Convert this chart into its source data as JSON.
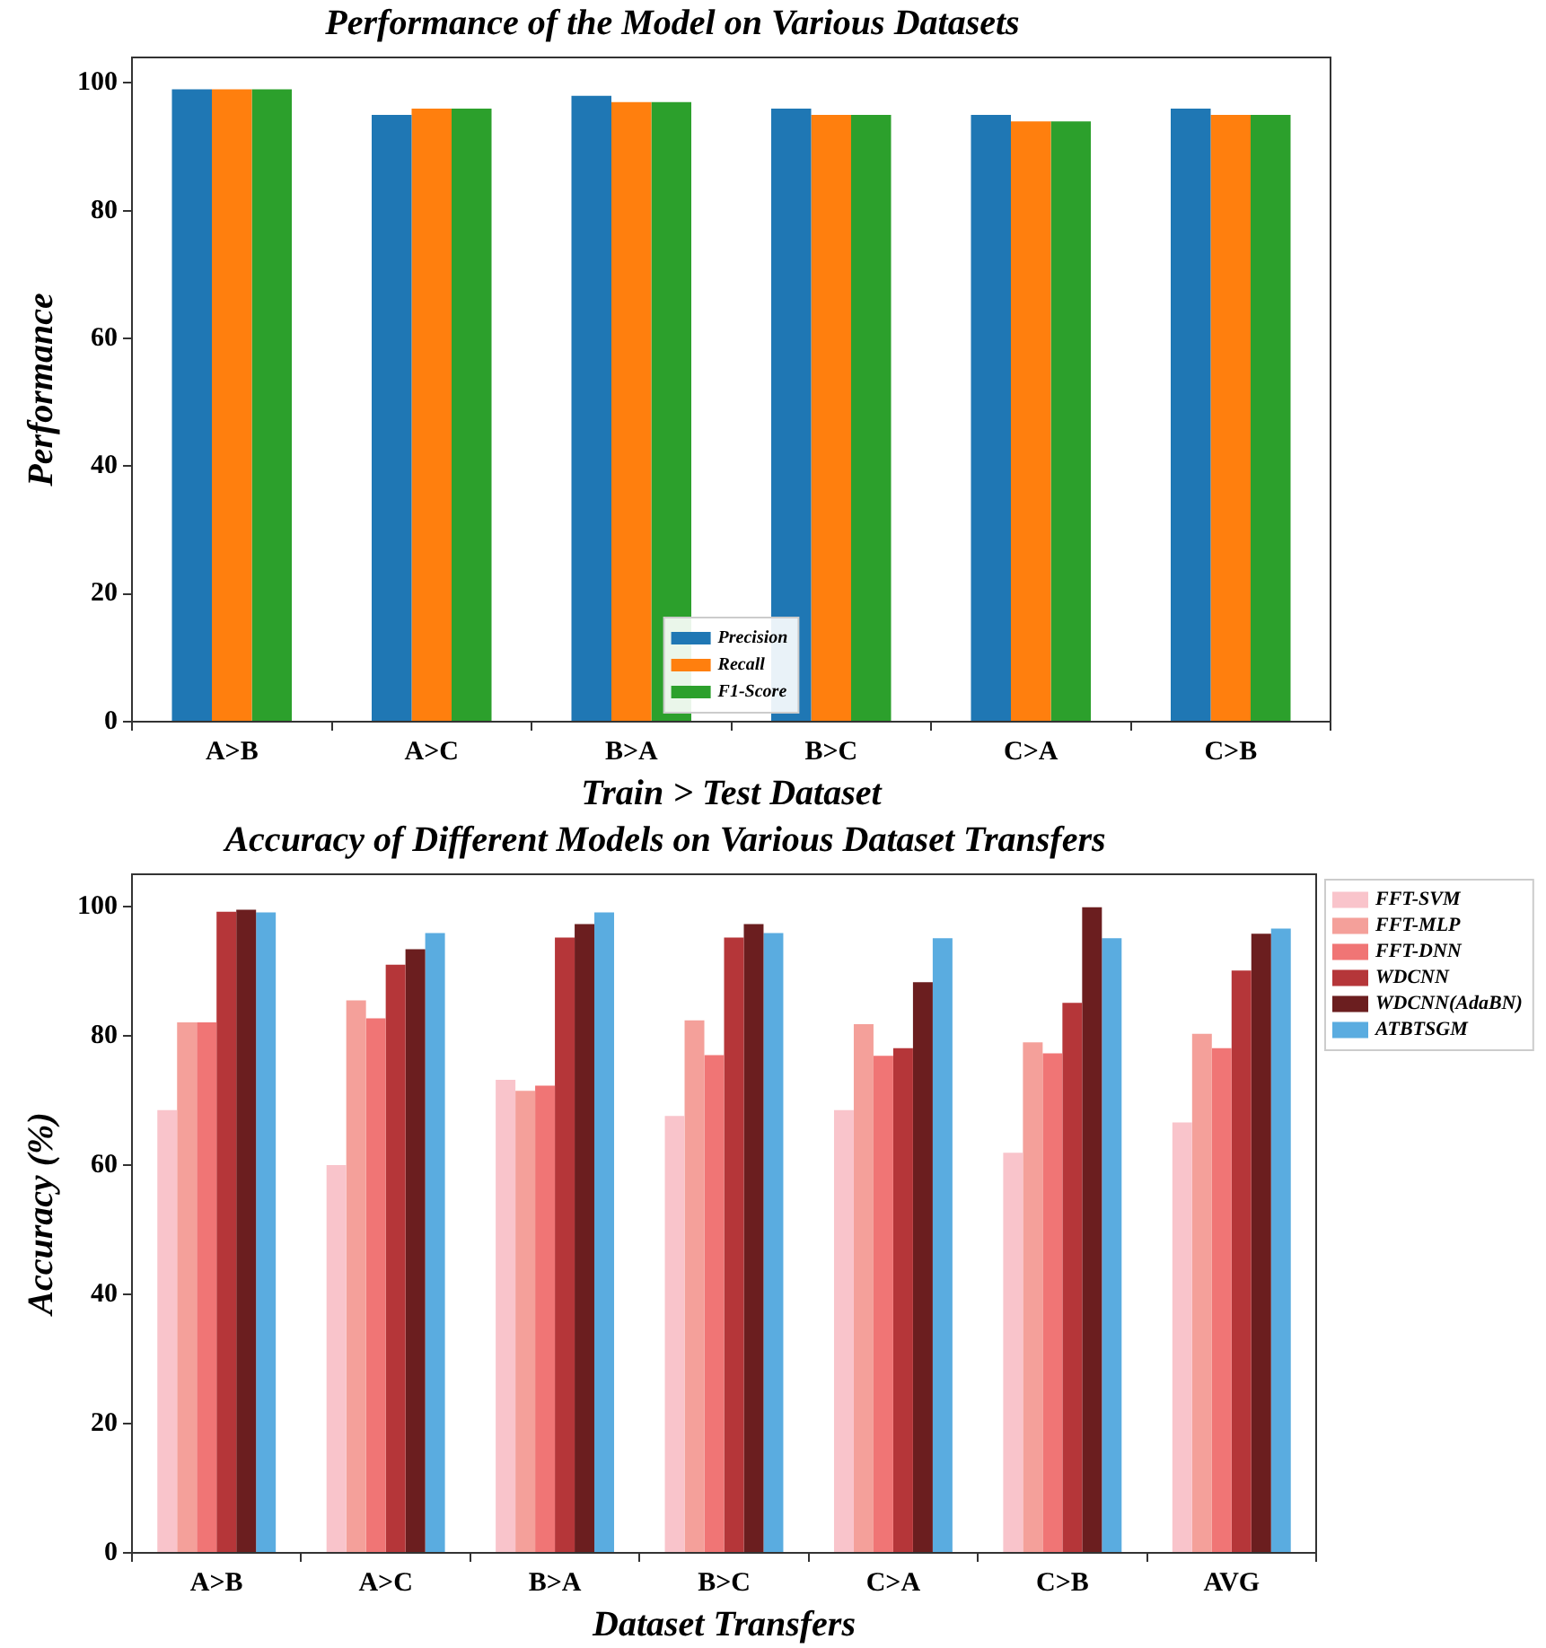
{
  "chart_data": [
    {
      "type": "bar",
      "title": "Performance of the Model on Various Datasets",
      "xlabel": "Train > Test Dataset",
      "ylabel": "Performance",
      "categories": [
        "A>B",
        "A>C",
        "B>A",
        "B>C",
        "C>A",
        "C>B"
      ],
      "series": [
        {
          "name": "Precision",
          "color": "#1f77b4",
          "values": [
            99,
            95,
            98,
            96,
            95,
            96
          ]
        },
        {
          "name": "Recall",
          "color": "#ff7f0e",
          "values": [
            99,
            96,
            97,
            95,
            94,
            95
          ]
        },
        {
          "name": "F1-Score",
          "color": "#2ca02c",
          "values": [
            99,
            96,
            97,
            95,
            94,
            95
          ]
        }
      ],
      "ylim": [
        0,
        104
      ],
      "yticks": [
        0,
        20,
        40,
        60,
        80,
        100
      ],
      "grid": false,
      "legend": "bottom"
    },
    {
      "type": "bar",
      "title": "Accuracy of Different Models on Various Dataset Transfers",
      "xlabel": "Dataset Transfers",
      "ylabel": "Accuracy (%)",
      "categories": [
        "A>B",
        "A>C",
        "B>A",
        "B>C",
        "C>A",
        "C>B",
        "AVG"
      ],
      "series": [
        {
          "name": "FFT-SVM",
          "color": "#f9c4cb",
          "values": [
            68.5,
            60.0,
            73.2,
            67.6,
            68.5,
            61.9,
            66.6
          ]
        },
        {
          "name": "FFT-MLP",
          "color": "#f4a09a",
          "values": [
            82.1,
            85.5,
            71.5,
            82.4,
            81.8,
            79.0,
            80.3
          ]
        },
        {
          "name": "FFT-DNN",
          "color": "#f07575",
          "values": [
            82.1,
            82.7,
            72.3,
            77.0,
            76.9,
            77.3,
            78.1
          ]
        },
        {
          "name": "WDCNN",
          "color": "#b53639",
          "values": [
            99.2,
            91.0,
            95.2,
            95.2,
            78.1,
            85.1,
            90.1
          ]
        },
        {
          "name": "WDCNN(AdaBN)",
          "color": "#6b1e1f",
          "values": [
            99.5,
            93.4,
            97.3,
            97.3,
            88.3,
            99.9,
            95.8
          ]
        },
        {
          "name": "ATBTSGM",
          "color": "#5aace0",
          "values": [
            99.1,
            95.9,
            99.1,
            95.9,
            95.1,
            95.1,
            96.6
          ]
        }
      ],
      "ylim": [
        0,
        105
      ],
      "yticks": [
        0,
        20,
        40,
        60,
        80,
        100
      ],
      "grid": false,
      "legend": "right"
    }
  ]
}
